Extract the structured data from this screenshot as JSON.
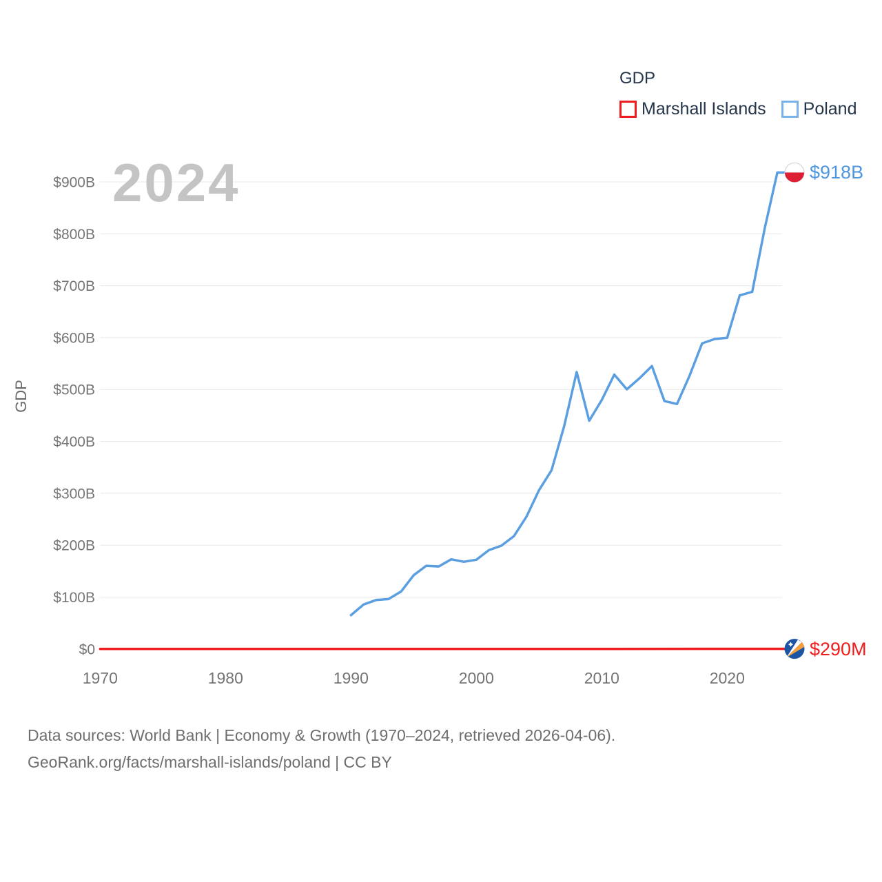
{
  "watermark_year": "2024",
  "legend": {
    "title": "GDP",
    "position": "top-right"
  },
  "y_axis_title": "GDP",
  "footer": {
    "line1": "Data sources: World Bank | Economy & Growth (1970–2024, retrieved 2026-04-06).",
    "line2": "GeoRank.org/facts/marshall-islands/poland | CC BY"
  },
  "chart_data": {
    "type": "line",
    "title": "GDP",
    "xlabel": "",
    "ylabel": "GDP",
    "xlim": [
      1970,
      2024
    ],
    "ylim_b": [
      0,
      950
    ],
    "grid": true,
    "legend_position": "top-right",
    "x_ticks": [
      {
        "year": 1970,
        "label": "1970"
      },
      {
        "year": 1980,
        "label": "1980"
      },
      {
        "year": 1990,
        "label": "1990"
      },
      {
        "year": 2000,
        "label": "2000"
      },
      {
        "year": 2010,
        "label": "2010"
      },
      {
        "year": 2020,
        "label": "2020"
      }
    ],
    "y_ticks": [
      {
        "value_b": 0,
        "label": "$0"
      },
      {
        "value_b": 100,
        "label": "$100B"
      },
      {
        "value_b": 200,
        "label": "$200B"
      },
      {
        "value_b": 300,
        "label": "$300B"
      },
      {
        "value_b": 400,
        "label": "$400B"
      },
      {
        "value_b": 500,
        "label": "$500B"
      },
      {
        "value_b": 600,
        "label": "$600B"
      },
      {
        "value_b": 700,
        "label": "$700B"
      },
      {
        "value_b": 800,
        "label": "$800B"
      },
      {
        "value_b": 900,
        "label": "$900B"
      }
    ],
    "series": [
      {
        "name": "Marshall Islands",
        "slug": "marshall-islands",
        "color": "#ee1c1c",
        "legend_box_color": "#ee1c1c",
        "end_label": "$290M",
        "end_label_color": "#f11d1d",
        "flag": "marshall-islands",
        "points_year_value_b": [
          [
            1970,
            0.0
          ],
          [
            1980,
            0.02
          ],
          [
            1990,
            0.08
          ],
          [
            2000,
            0.11
          ],
          [
            2010,
            0.17
          ],
          [
            2020,
            0.24
          ],
          [
            2024,
            0.29
          ]
        ]
      },
      {
        "name": "Poland",
        "slug": "poland",
        "color": "#5b9fe0",
        "legend_box_color": "#79b2e8",
        "end_label": "$918B",
        "end_label_color": "#4e96df",
        "flag": "poland",
        "points_year_value_b": [
          [
            1990,
            65.0
          ],
          [
            1991,
            85.5
          ],
          [
            1992,
            94.3
          ],
          [
            1993,
            96.1
          ],
          [
            1994,
            110.8
          ],
          [
            1995,
            142.1
          ],
          [
            1996,
            160.3
          ],
          [
            1997,
            159.0
          ],
          [
            1998,
            172.7
          ],
          [
            1999,
            168.0
          ],
          [
            2000,
            171.9
          ],
          [
            2001,
            190.4
          ],
          [
            2002,
            199.1
          ],
          [
            2003,
            217.5
          ],
          [
            2004,
            255.1
          ],
          [
            2005,
            306.1
          ],
          [
            2006,
            344.6
          ],
          [
            2007,
            429.2
          ],
          [
            2008,
            533.6
          ],
          [
            2009,
            439.8
          ],
          [
            2010,
            479.7
          ],
          [
            2011,
            528.8
          ],
          [
            2012,
            500.3
          ],
          [
            2013,
            521.5
          ],
          [
            2014,
            545.2
          ],
          [
            2015,
            477.6
          ],
          [
            2016,
            472.0
          ],
          [
            2017,
            526.5
          ],
          [
            2018,
            588.8
          ],
          [
            2019,
            597.2
          ],
          [
            2020,
            599.5
          ],
          [
            2021,
            681.3
          ],
          [
            2022,
            688.2
          ],
          [
            2023,
            811.2
          ],
          [
            2024,
            918.0
          ]
        ]
      }
    ]
  }
}
